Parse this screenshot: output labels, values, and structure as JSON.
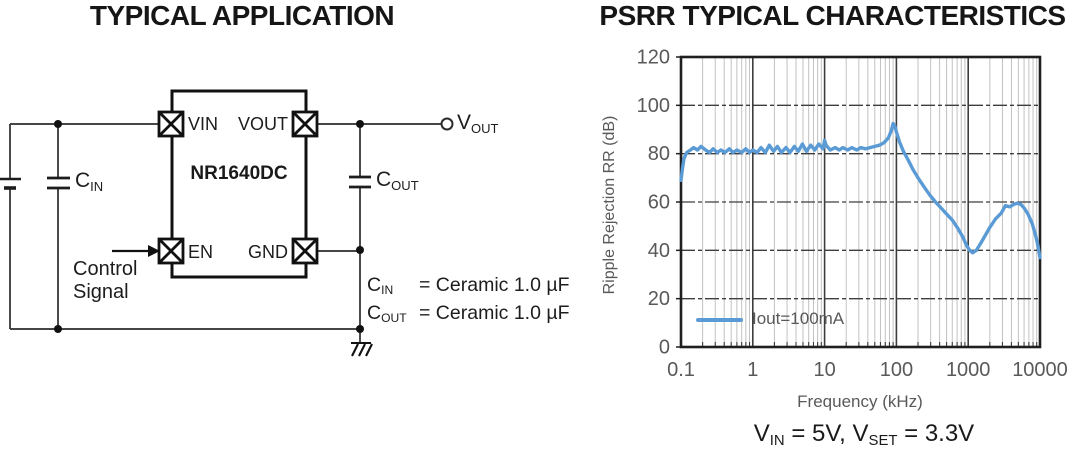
{
  "left_panel": {
    "title": "TYPICAL APPLICATION",
    "ic": {
      "name": "NR1640DC",
      "pin_vin": "VIN",
      "pin_vout": "VOUT",
      "pin_en": "EN",
      "pin_gnd": "GND"
    },
    "labels": {
      "cin_main": "C",
      "cin_sub": "IN",
      "cout_main": "C",
      "cout_sub": "OUT",
      "vout_terminal_main": "V",
      "vout_terminal_sub": "OUT",
      "control_line1": "Control",
      "control_line2": "Signal"
    },
    "notes": [
      {
        "name_main": "C",
        "name_sub": "IN",
        "value": "= Ceramic 1.0 µF"
      },
      {
        "name_main": "C",
        "name_sub": "OUT",
        "value": "= Ceramic 1.0 µF"
      }
    ]
  },
  "right_panel": {
    "title": "PSRR TYPICAL CHARACTERISTICS",
    "legend_label": "Iout=100mA",
    "caption": {
      "p1": "V",
      "s1": "IN",
      "p2": " = 5V, V",
      "s2": "SET",
      "p3": " = 3.3V"
    }
  },
  "colors": {
    "curve_blue": "#5B9BD5",
    "chart_text_gray": "#595959",
    "grid_minor": "#c2c2c2",
    "grid_major": "#3d3d3d",
    "border_ink": "#1f1f1f"
  },
  "chart_data": {
    "type": "line",
    "title": "PSRR TYPICAL CHARACTERISTICS",
    "xlabel": "Frequency (kHz)",
    "ylabel": "Ripple Rejection RR (dB)",
    "x_scale": "log",
    "xlim": [
      0.1,
      10000
    ],
    "ylim": [
      0,
      120
    ],
    "y_ticks": [
      0,
      20,
      40,
      60,
      80,
      100,
      120
    ],
    "x_ticks": [
      0.1,
      1,
      10,
      100,
      1000,
      10000
    ],
    "x_tick_labels": [
      "0.1",
      "1",
      "10",
      "100",
      "1000",
      "10000"
    ],
    "grid": true,
    "legend_position": "inside-bottom-left",
    "annotation": "VIN = 5V, VSET = 3.3V",
    "series": [
      {
        "name": "Iout=100mA",
        "color": "#5B9BD5",
        "points": [
          [
            0.1,
            69
          ],
          [
            0.105,
            74
          ],
          [
            0.11,
            78
          ],
          [
            0.12,
            80.5
          ],
          [
            0.135,
            81.5
          ],
          [
            0.15,
            82.5
          ],
          [
            0.17,
            81.5
          ],
          [
            0.19,
            83
          ],
          [
            0.22,
            81.5
          ],
          [
            0.25,
            80.5
          ],
          [
            0.28,
            82
          ],
          [
            0.32,
            80.5
          ],
          [
            0.36,
            81.5
          ],
          [
            0.41,
            80.5
          ],
          [
            0.47,
            82
          ],
          [
            0.53,
            80.5
          ],
          [
            0.6,
            81.5
          ],
          [
            0.7,
            80.5
          ],
          [
            0.8,
            82
          ],
          [
            0.9,
            80.5
          ],
          [
            1.0,
            81.5
          ],
          [
            1.15,
            80.5
          ],
          [
            1.3,
            82.5
          ],
          [
            1.5,
            80.5
          ],
          [
            1.7,
            83.5
          ],
          [
            1.95,
            81
          ],
          [
            2.2,
            83
          ],
          [
            2.5,
            80.5
          ],
          [
            2.9,
            82.5
          ],
          [
            3.3,
            80.5
          ],
          [
            3.8,
            83
          ],
          [
            4.3,
            81
          ],
          [
            4.9,
            84
          ],
          [
            5.6,
            81
          ],
          [
            6.4,
            83.5
          ],
          [
            7.3,
            81.5
          ],
          [
            8.3,
            84
          ],
          [
            9.5,
            82
          ],
          [
            10,
            85.5
          ],
          [
            10.5,
            83.5
          ],
          [
            12,
            81.5
          ],
          [
            14,
            82.5
          ],
          [
            16,
            81.5
          ],
          [
            18,
            82.5
          ],
          [
            21,
            81.5
          ],
          [
            24,
            82.5
          ],
          [
            28,
            81.5
          ],
          [
            32,
            82.5
          ],
          [
            37,
            82
          ],
          [
            43,
            82.5
          ],
          [
            50,
            83
          ],
          [
            58,
            83.5
          ],
          [
            67,
            84.5
          ],
          [
            77,
            86.5
          ],
          [
            85,
            89.5
          ],
          [
            90,
            92.5
          ],
          [
            95,
            91.5
          ],
          [
            100,
            89
          ],
          [
            110,
            85
          ],
          [
            125,
            81
          ],
          [
            145,
            77.5
          ],
          [
            170,
            73.5
          ],
          [
            200,
            70
          ],
          [
            240,
            66.5
          ],
          [
            290,
            63
          ],
          [
            350,
            60
          ],
          [
            420,
            57.5
          ],
          [
            500,
            55
          ],
          [
            600,
            52.5
          ],
          [
            720,
            49
          ],
          [
            840,
            45.5
          ],
          [
            950,
            42
          ],
          [
            1050,
            40
          ],
          [
            1150,
            39
          ],
          [
            1300,
            40
          ],
          [
            1500,
            43
          ],
          [
            1750,
            46.5
          ],
          [
            2000,
            49.5
          ],
          [
            2400,
            53
          ],
          [
            2900,
            55.5
          ],
          [
            3300,
            58.5
          ],
          [
            3800,
            58
          ],
          [
            4300,
            59
          ],
          [
            4800,
            59.5
          ],
          [
            5400,
            59
          ],
          [
            6000,
            57.5
          ],
          [
            6800,
            55
          ],
          [
            7800,
            51
          ],
          [
            8800,
            45.5
          ],
          [
            9400,
            41.5
          ],
          [
            10000,
            37
          ]
        ]
      }
    ]
  }
}
